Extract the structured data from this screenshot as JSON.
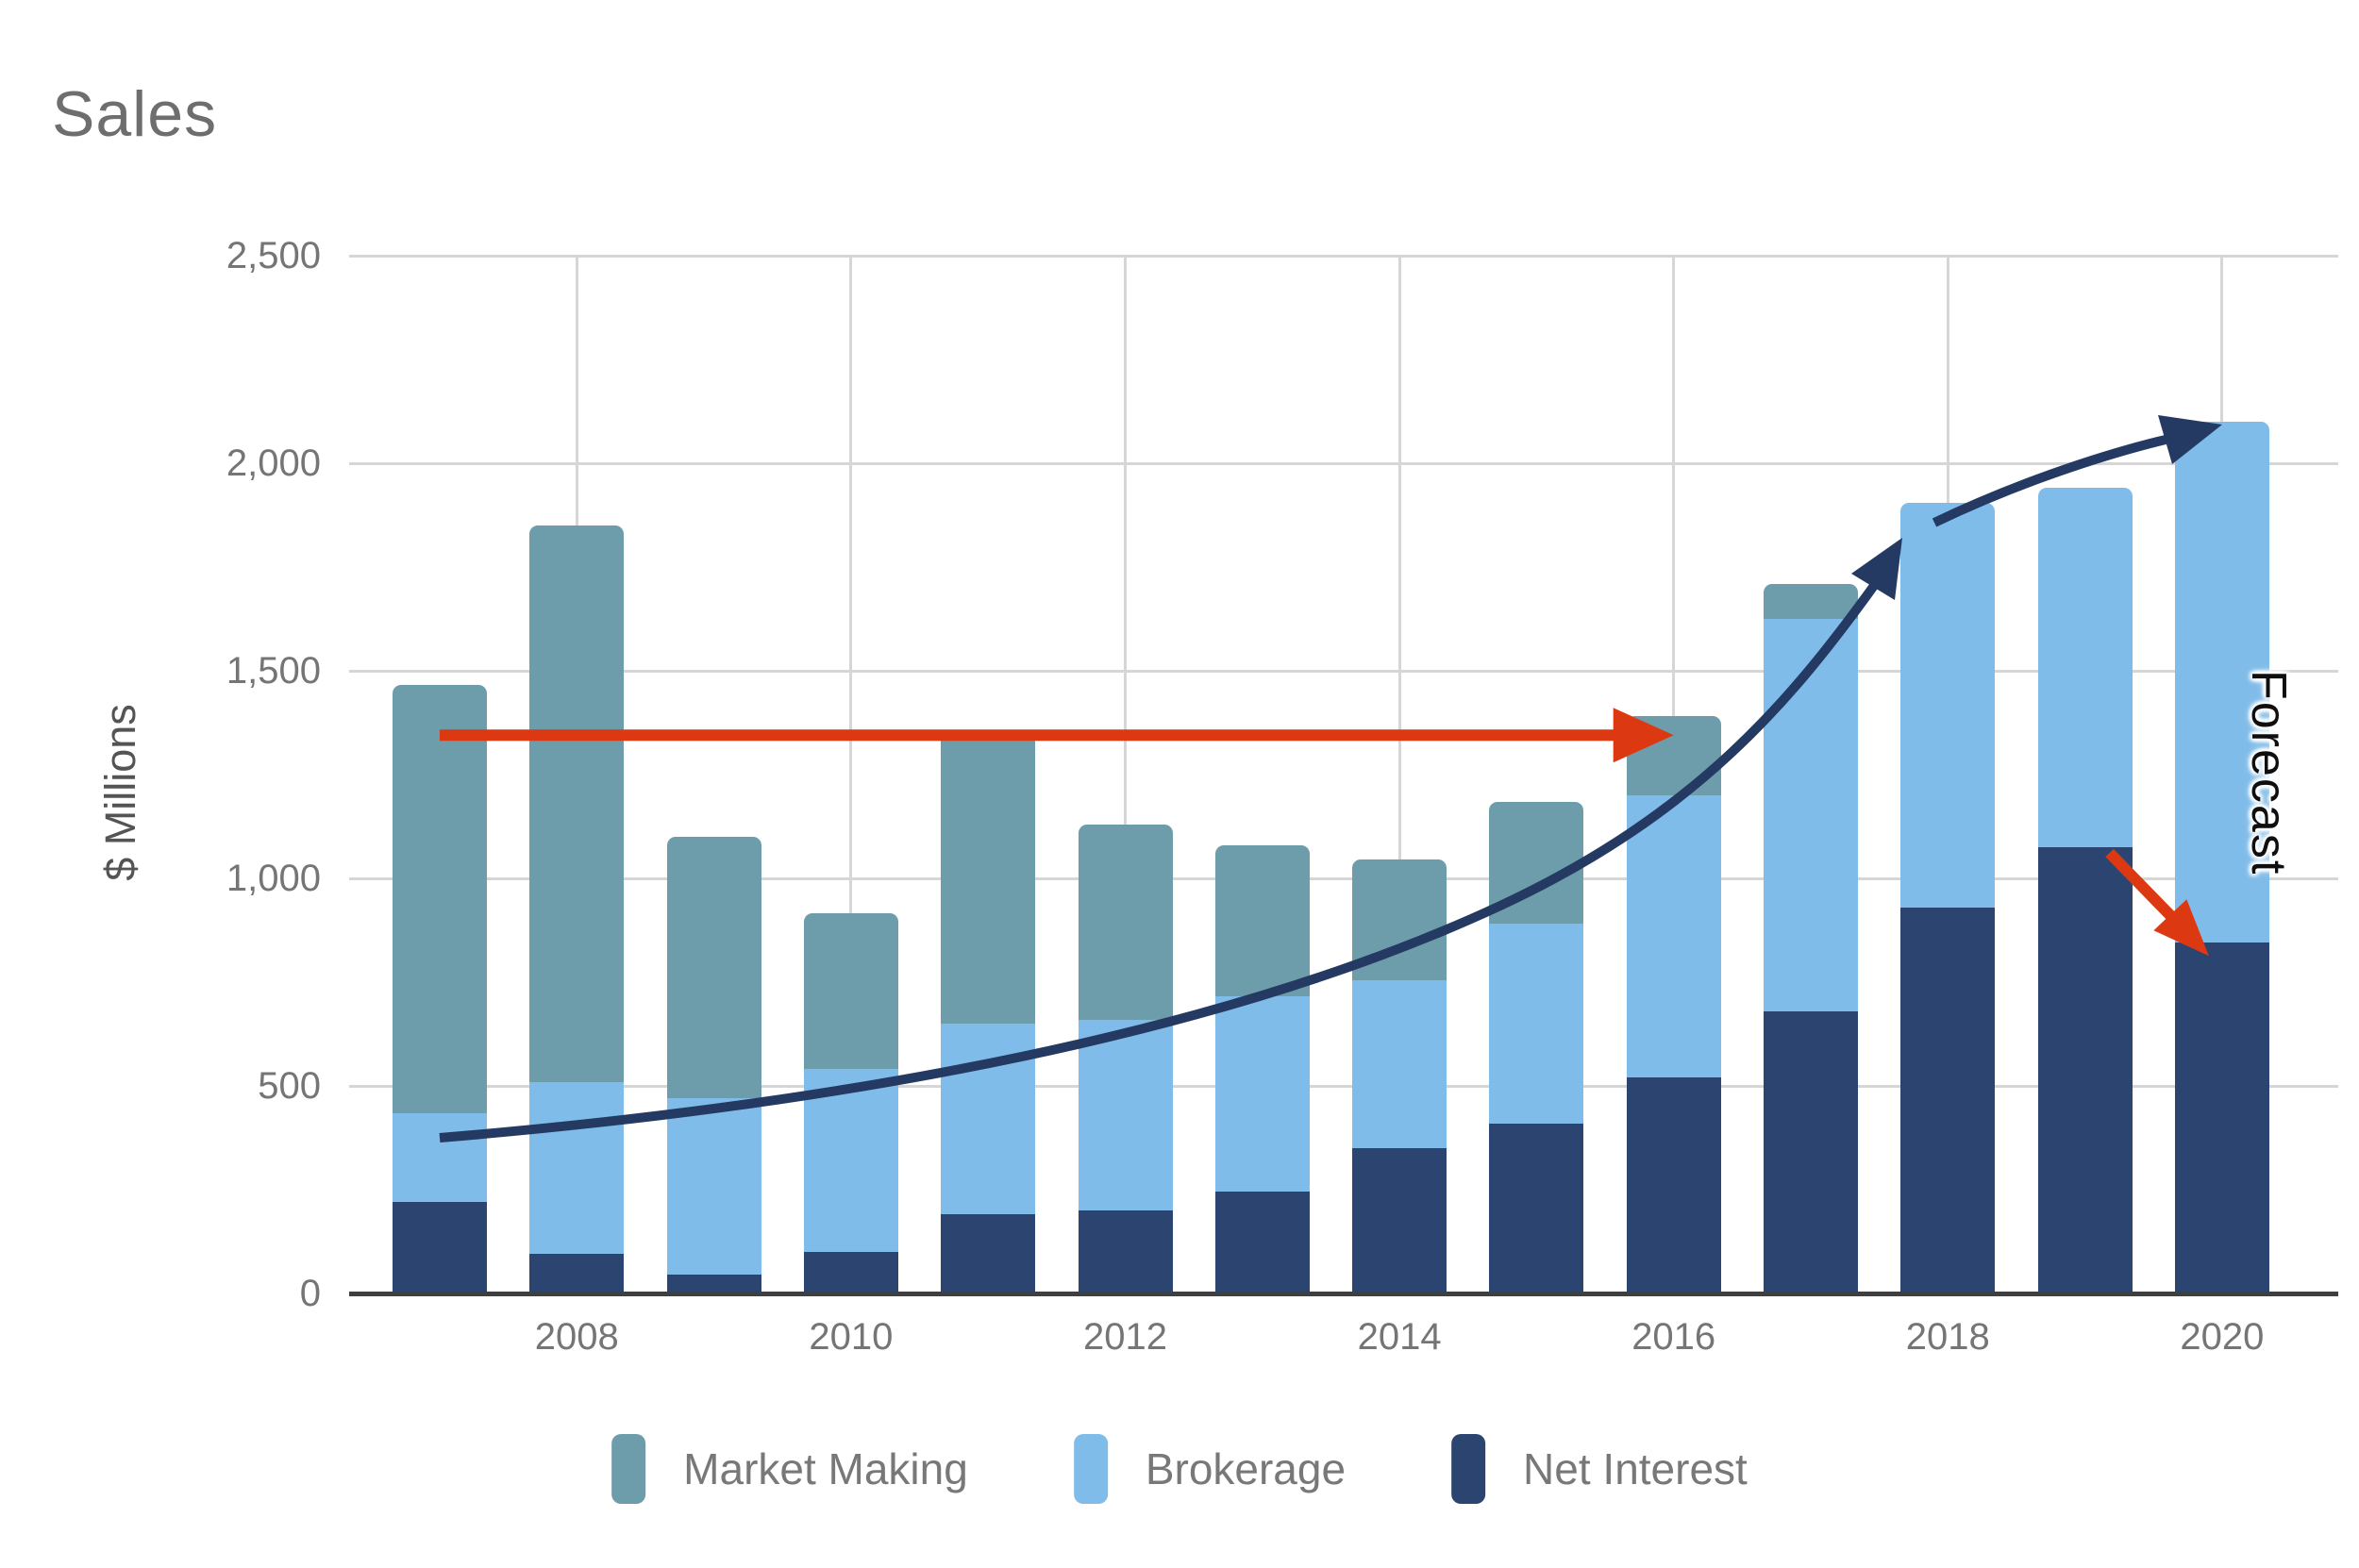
{
  "title": "Sales",
  "y_axis": {
    "label": "$ Millions",
    "tick_labels": [
      "0",
      "500",
      "1,000",
      "1,500",
      "2,000",
      "2,500"
    ],
    "tick_values": [
      0,
      500,
      1000,
      1500,
      2000,
      2500
    ],
    "max": 2500
  },
  "x_axis": {
    "tick_labels": [
      "2008",
      "2010",
      "2012",
      "2014",
      "2016",
      "2018",
      "2020"
    ],
    "tick_years": [
      2008,
      2010,
      2012,
      2014,
      2016,
      2018,
      2020
    ]
  },
  "forecast_label": "Forecast",
  "colors": {
    "market_making": "#6d9cab",
    "brokerage": "#7fbce9",
    "net_interest": "#2b4470",
    "trend_arrow": "#243a62",
    "reference_arrow": "#dc3912",
    "decline_arrow": "#dc3912",
    "gridline": "#d6d6d6",
    "axis_line": "#3f3f3f",
    "tick_text": "#757575",
    "title_text": "#6e6e6e"
  },
  "chart_data": {
    "type": "bar",
    "stacked": true,
    "title": "Sales",
    "ylabel": "$ Millions",
    "ylim": [
      0,
      2500
    ],
    "grid": true,
    "legend_position": "bottom",
    "categories": [
      2007,
      2008,
      2009,
      2010,
      2011,
      2012,
      2013,
      2014,
      2015,
      2016,
      2017,
      2018,
      2019,
      2020
    ],
    "series": [
      {
        "name": "Net Interest",
        "color": "#2b4470",
        "values": [
          220,
          95,
          45,
          100,
          190,
          200,
          245,
          350,
          410,
          520,
          680,
          930,
          1075,
          845
        ]
      },
      {
        "name": "Brokerage",
        "color": "#7fbce9",
        "values": [
          215,
          415,
          425,
          440,
          460,
          460,
          470,
          405,
          480,
          680,
          945,
          975,
          865,
          1255
        ]
      },
      {
        "name": "Market Making",
        "color": "#6d9cab",
        "values": [
          1030,
          1340,
          630,
          375,
          705,
          470,
          365,
          290,
          295,
          190,
          85,
          0,
          0,
          0
        ]
      }
    ],
    "totals": [
      1465,
      1850,
      1100,
      915,
      1355,
      1130,
      1080,
      1045,
      1185,
      1390,
      1710,
      1905,
      1940,
      2100
    ],
    "annotations": [
      {
        "id": "reference",
        "type": "horizontal-arrow",
        "color": "#dc3912",
        "value": 1345,
        "from_year": 2007,
        "to_year": 2016
      },
      {
        "id": "trend",
        "type": "curved-arrow",
        "color": "#243a62",
        "from": {
          "year": 2007,
          "value": 375
        },
        "mid_arrowhead": {
          "year": 2018,
          "value": 1820
        },
        "to": {
          "year": 2020,
          "value": 2090
        }
      },
      {
        "id": "decline",
        "type": "straight-arrow",
        "color": "#dc3912",
        "from": {
          "year": 2019,
          "value": 1075
        },
        "to": {
          "year": 2020,
          "value": 845
        }
      },
      {
        "id": "forecast",
        "type": "text",
        "text": "Forecast",
        "year": 2020
      }
    ],
    "legend_order": [
      "Market Making",
      "Brokerage",
      "Net Interest"
    ]
  }
}
